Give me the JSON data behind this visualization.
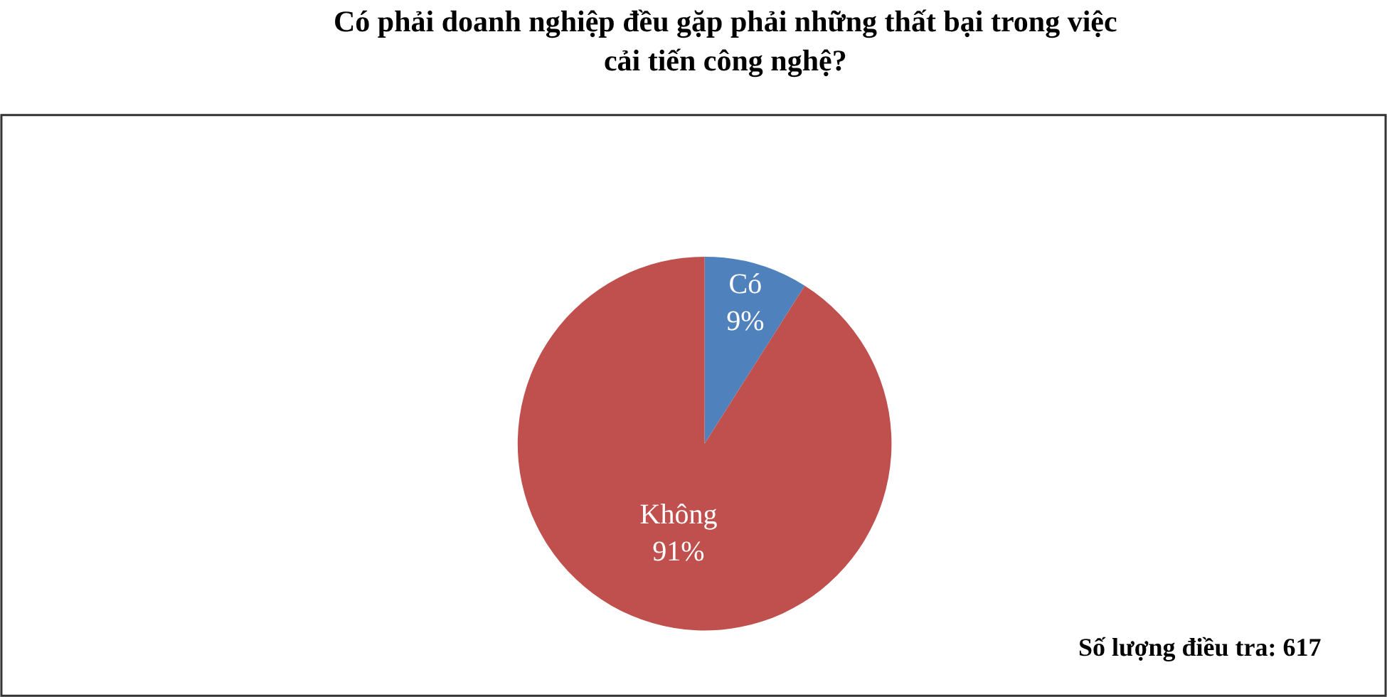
{
  "chart_data": {
    "type": "pie",
    "title": "Có phải doanh nghiệp đều gặp phải những thất bại trong việc\ncải tiến công nghệ?",
    "categories": [
      "Có",
      "Không"
    ],
    "values": [
      9,
      91
    ],
    "colors": [
      "#4f81bd",
      "#c0504d"
    ],
    "value_labels": [
      "9%",
      "91%"
    ],
    "annotations": [
      "Số lượng điều tra: 617"
    ],
    "legend": false
  }
}
